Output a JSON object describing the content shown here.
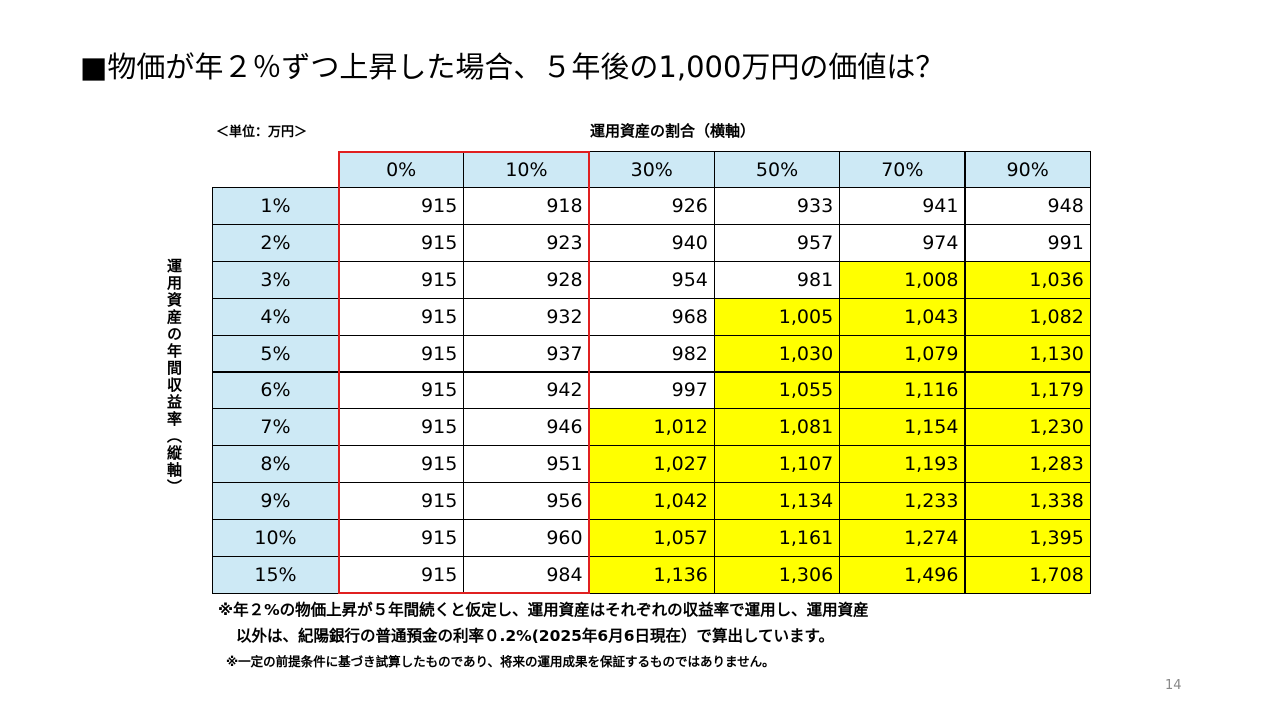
{
  "title": "■物価が年２％ずつ上昇した場合、５年後の1,000万円の価値は？",
  "unit": "＜単位：万円＞",
  "column_axis_label": "運用資産の割合（横軸）",
  "row_axis_label": "運用資産の年間収益率（縦軸）",
  "table": {
    "columns": [
      "0%",
      "10%",
      "30%",
      "50%",
      "70%",
      "90%"
    ],
    "highlight_color": "#ffff00",
    "rows": [
      {
        "label": "1%",
        "cells": [
          "915",
          "918",
          "926",
          "933",
          "941",
          "948"
        ]
      },
      {
        "label": "2%",
        "cells": [
          "915",
          "923",
          "940",
          "957",
          "974",
          "991"
        ]
      },
      {
        "label": "3%",
        "cells": [
          "915",
          "928",
          "954",
          "981",
          "1,008",
          "1,036"
        ]
      },
      {
        "label": "4%",
        "cells": [
          "915",
          "932",
          "968",
          "1,005",
          "1,043",
          "1,082"
        ]
      },
      {
        "label": "5%",
        "cells": [
          "915",
          "937",
          "982",
          "1,030",
          "1,079",
          "1,130"
        ]
      },
      {
        "label": "6%",
        "cells": [
          "915",
          "942",
          "997",
          "1,055",
          "1,116",
          "1,179"
        ]
      },
      {
        "label": "7%",
        "cells": [
          "915",
          "946",
          "1,012",
          "1,081",
          "1,154",
          "1,230"
        ]
      },
      {
        "label": "8%",
        "cells": [
          "915",
          "951",
          "1,027",
          "1,107",
          "1,193",
          "1,283"
        ]
      },
      {
        "label": "9%",
        "cells": [
          "915",
          "956",
          "1,042",
          "1,134",
          "1,233",
          "1,338"
        ]
      },
      {
        "label": "10%",
        "cells": [
          "915",
          "960",
          "1,057",
          "1,161",
          "1,274",
          "1,395"
        ]
      },
      {
        "label": "15%",
        "cells": [
          "915",
          "984",
          "1,136",
          "1,306",
          "1,496",
          "1,708"
        ]
      }
    ]
  },
  "notes": [
    "※年２%の物価上昇が５年間続くと仮定し、運用資産はそれぞれの収益率で運用し、運用資産",
    "以外は、紀陽銀行の普通預金の利率０.2%(2025年6月6日現在）で算出しています。",
    "※一定の前提条件に基づき試算したものであり、将来の運用成果を保証するものではありません。"
  ],
  "page_number": "14"
}
